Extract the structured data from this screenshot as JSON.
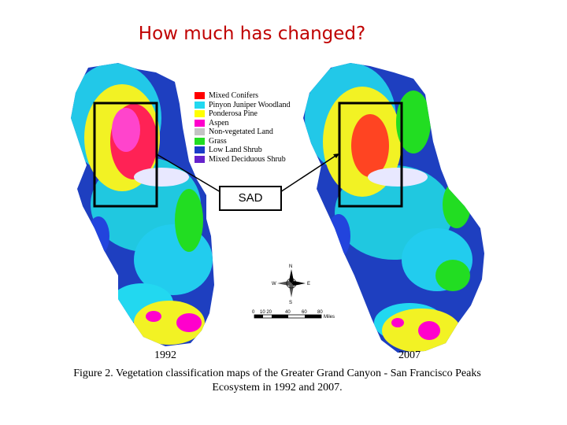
{
  "title": "How much has changed?",
  "legend": {
    "items": [
      {
        "label": "Mixed Conifers",
        "color": "#ff0000"
      },
      {
        "label": "Pinyon Juniper Woodland",
        "color": "#22d8f0"
      },
      {
        "label": "Ponderosa Pine",
        "color": "#ffff00"
      },
      {
        "label": "Aspen",
        "color": "#ff00cc"
      },
      {
        "label": "Non-vegetated Land",
        "color": "#c4c4c4"
      },
      {
        "label": "Grass",
        "color": "#22dd22"
      },
      {
        "label": "Low Land Shrub",
        "color": "#1a3cc8"
      },
      {
        "label": "Mixed Deciduous Shrub",
        "color": "#6622cc"
      }
    ]
  },
  "callout_label": "SAD",
  "years": {
    "left": "1992",
    "right": "2007"
  },
  "scale_bar": {
    "ticks": [
      "0",
      "10 20",
      "40",
      "60",
      "80"
    ],
    "unit": "Miles"
  },
  "compass": {
    "n": "N",
    "s": "S",
    "e": "E",
    "w": "W"
  },
  "caption": {
    "line1": "Figure 2. Vegetation classification maps of the Greater Grand Canyon - San Francisco Peaks",
    "line2": "Ecosystem in 1992 and 2007."
  }
}
